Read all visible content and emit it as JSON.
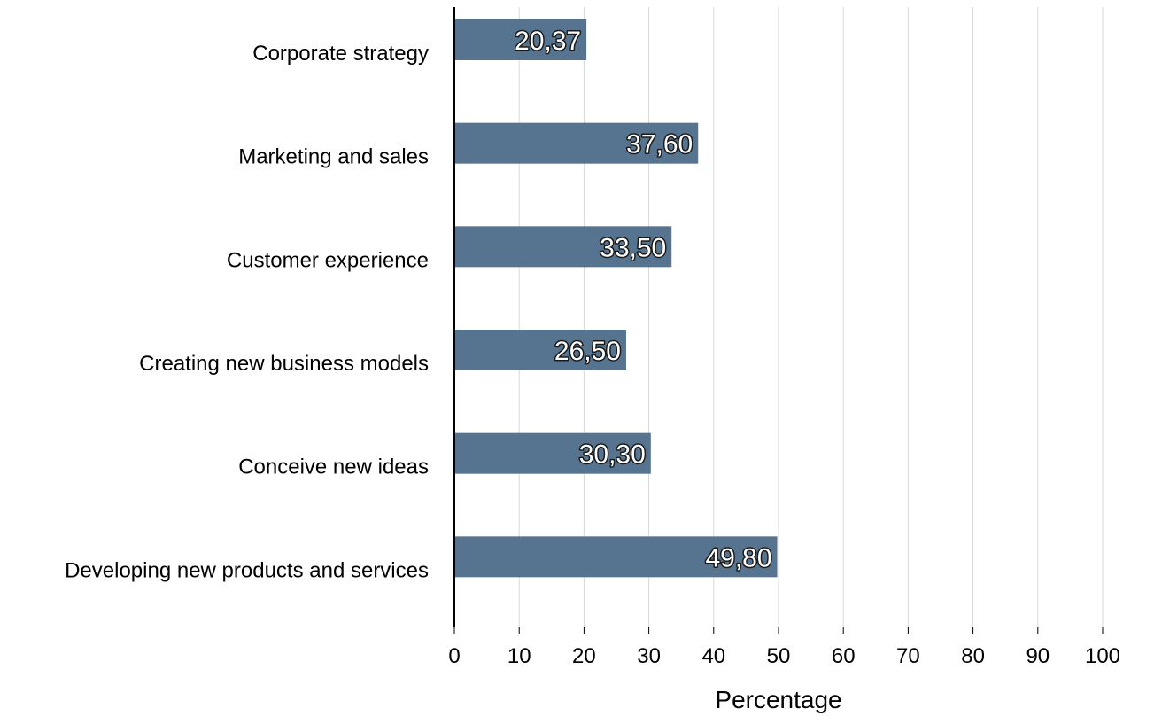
{
  "chart_data": {
    "type": "bar",
    "orientation": "horizontal",
    "categories": [
      "Corporate strategy",
      "Marketing and sales",
      "Customer experience",
      "Creating new business models",
      "Conceive new ideas",
      "Developing new products and services"
    ],
    "values": [
      20.37,
      37.6,
      33.5,
      26.5,
      30.3,
      49.8
    ],
    "value_labels": [
      "20,37",
      "37,60",
      "33,50",
      "26,50",
      "30,30",
      "49,80"
    ],
    "title": "",
    "xlabel": "Percentage",
    "ylabel": "",
    "xlim": [
      0,
      100
    ],
    "x_ticks": [
      0,
      10,
      20,
      30,
      40,
      50,
      60,
      70,
      80,
      90,
      100
    ],
    "grid": "vertical",
    "legend": "none",
    "bar_color": "#56748f"
  }
}
